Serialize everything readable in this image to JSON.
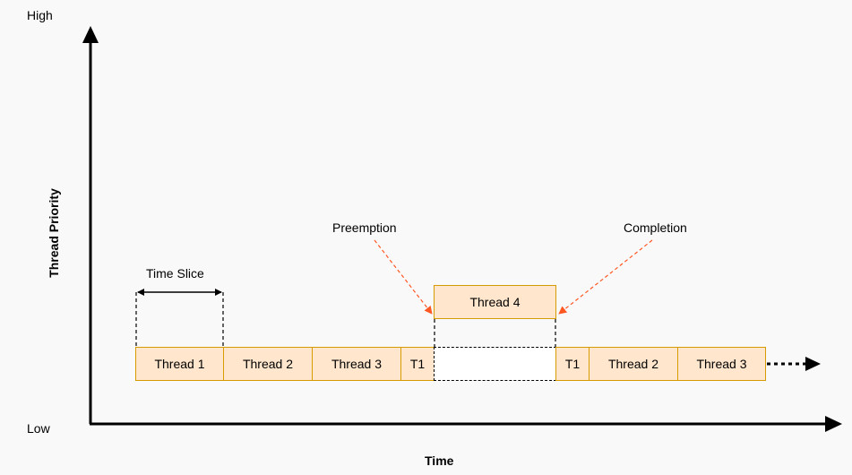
{
  "axis": {
    "high_label": "High",
    "low_label": "Low",
    "y_title": "Thread Priority",
    "x_title": "Time"
  },
  "annotations": {
    "time_slice": "Time Slice",
    "preemption": "Preemption",
    "completion": "Completion"
  },
  "timeline_low": [
    "Thread 1",
    "Thread 2",
    "Thread 3",
    "T1",
    "T1",
    "Thread 2",
    "Thread 3"
  ],
  "timeline_high": [
    "Thread 4"
  ],
  "colors": {
    "box_fill": "#ffe6cc",
    "box_border": "#d79b00",
    "annotation_arrow": "#ff5722",
    "axis": "#000000"
  }
}
